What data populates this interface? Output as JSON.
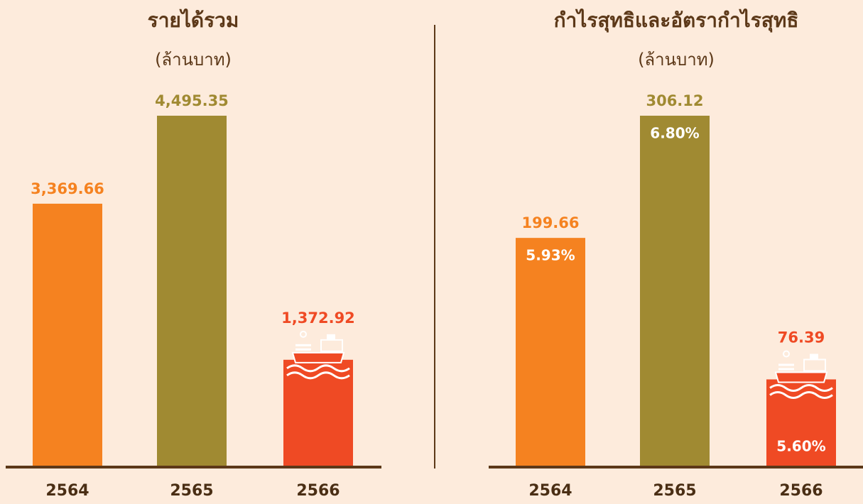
{
  "chart_data": [
    {
      "type": "bar",
      "title": "รายได้รวม",
      "subtitle": "(ล้านบาท)",
      "categories": [
        "2564",
        "2565",
        "2566"
      ],
      "values": [
        3369.66,
        4495.35,
        1372.92
      ],
      "value_labels": [
        "3,369.66",
        "4,495.35",
        "1,372.92"
      ],
      "colors": [
        "#f58220",
        "#a08a32",
        "#ef4a24"
      ]
    },
    {
      "type": "bar",
      "title": "กำไรสุทธิและอัตรากำไรสุทธิ",
      "subtitle": "(ล้านบาท)",
      "categories": [
        "2564",
        "2565",
        "2566"
      ],
      "values": [
        199.66,
        306.12,
        76.39
      ],
      "value_labels": [
        "199.66",
        "306.12",
        "76.39"
      ],
      "margins": [
        5.93,
        6.8,
        5.6
      ],
      "margin_labels": [
        "5.93%",
        "6.80%",
        "5.60%"
      ],
      "colors": [
        "#f58220",
        "#a08a32",
        "#ef4a24"
      ]
    }
  ]
}
